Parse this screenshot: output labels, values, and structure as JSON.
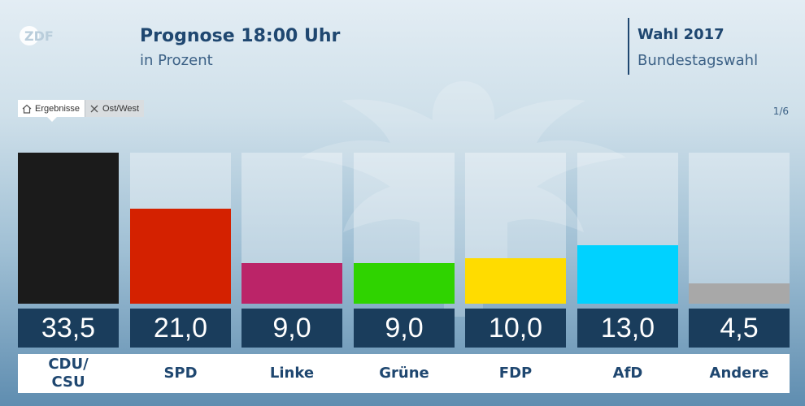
{
  "header": {
    "logo_text": "ZDF",
    "title": "Prognose 18:00 Uhr",
    "subtitle": "in Prozent",
    "election_title": "Wahl 2017",
    "election_subtitle": "Bundestagswahl"
  },
  "tabs": [
    {
      "label": "Ergebnisse",
      "icon": "home-icon",
      "active": true
    },
    {
      "label": "Ost/West",
      "icon": "close-icon",
      "active": false
    }
  ],
  "pager": "1/6",
  "chart_data": {
    "type": "bar",
    "title": "Prognose 18:00 Uhr",
    "subtitle": "in Prozent",
    "categories": [
      "CDU/\nCSU",
      "SPD",
      "Linke",
      "Grüne",
      "FDP",
      "AfD",
      "Andere"
    ],
    "values": [
      33.5,
      21.0,
      9.0,
      9.0,
      10.0,
      13.0,
      4.5
    ],
    "value_labels": [
      "33,5",
      "21,0",
      "9,0",
      "9,0",
      "10,0",
      "13,0",
      "4,5"
    ],
    "colors": [
      "#1b1b1b",
      "#d42100",
      "#bb2468",
      "#2fd300",
      "#ffdc00",
      "#00d2ff",
      "#a8a8a8"
    ],
    "ylim": [
      0,
      33.5
    ],
    "grid": false,
    "xlabel": "",
    "ylabel": ""
  }
}
